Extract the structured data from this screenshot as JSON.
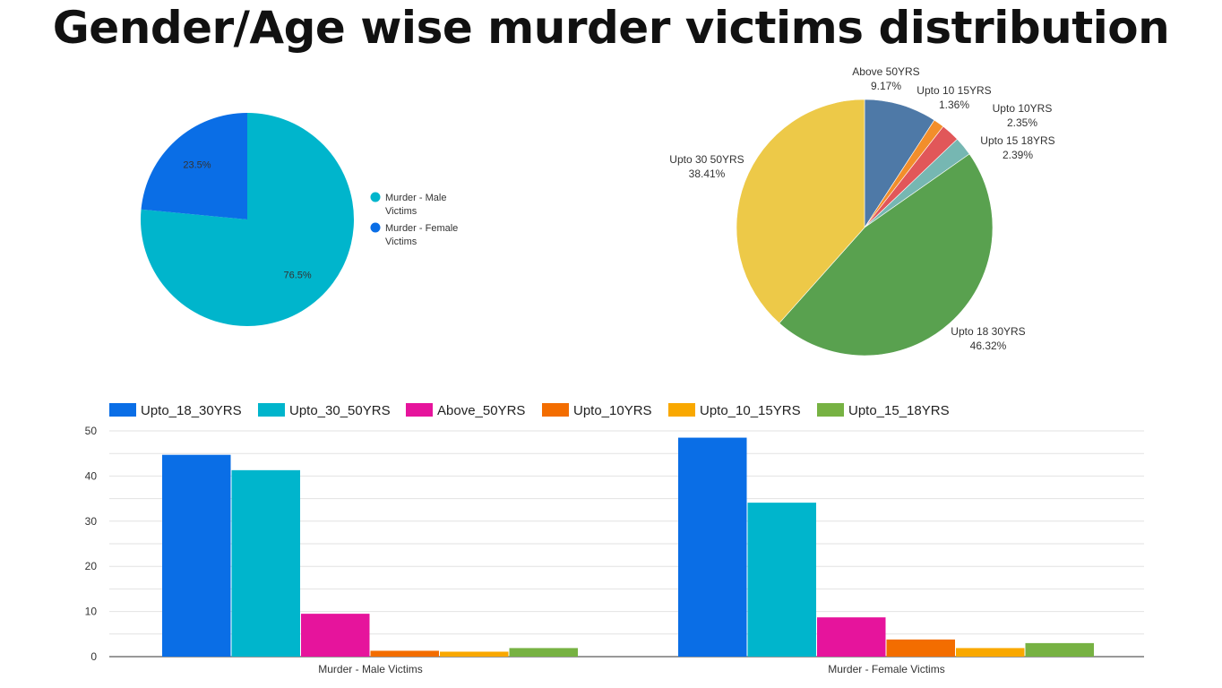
{
  "title": "Gender/Age wise murder victims distribution",
  "chart_data": [
    {
      "type": "pie",
      "title": "",
      "legend_position": "right",
      "slices": [
        {
          "name": "Murder - Male Victims",
          "name_lines": [
            "Murder - Male",
            "Victims"
          ],
          "value": 76.5,
          "label": "76.5%",
          "color": "#00b5cc"
        },
        {
          "name": "Murder - Female Victims",
          "name_lines": [
            "Murder - Female",
            "Victims"
          ],
          "value": 23.5,
          "label": "23.5%",
          "color": "#0a6ee6"
        }
      ]
    },
    {
      "type": "pie",
      "title": "",
      "legend_position": "none",
      "slices": [
        {
          "name": "Above 50YRS",
          "value": 9.17,
          "label": "9.17%",
          "color": "#4e79a7"
        },
        {
          "name": "Upto 10 15YRS",
          "value": 1.36,
          "label": "1.36%",
          "color": "#f28e2b"
        },
        {
          "name": "Upto 10YRS",
          "value": 2.35,
          "label": "2.35%",
          "color": "#e15759"
        },
        {
          "name": "Upto 15 18YRS",
          "value": 2.39,
          "label": "2.39%",
          "color": "#76b7b2"
        },
        {
          "name": "Upto 18 30YRS",
          "value": 46.32,
          "label": "46.32%",
          "color": "#59a14f"
        },
        {
          "name": "Upto 30 50YRS",
          "value": 38.41,
          "label": "38.41%",
          "color": "#edc948"
        }
      ]
    },
    {
      "type": "bar",
      "title": "",
      "xlabel": "",
      "ylabel": "",
      "ylim": [
        0,
        50
      ],
      "yticks": [
        0,
        10,
        20,
        30,
        40,
        50
      ],
      "grid": true,
      "legend_position": "top",
      "categories": [
        "Murder - Male Victims",
        "Murder - Female Victims"
      ],
      "series": [
        {
          "name": "Upto_18_30YRS",
          "values": [
            44.7,
            48.5
          ],
          "color": "#0a6ee6"
        },
        {
          "name": "Upto_30_50YRS",
          "values": [
            41.3,
            34.1
          ],
          "color": "#00b5cc"
        },
        {
          "name": "Above_50YRS",
          "values": [
            9.5,
            8.7
          ],
          "color": "#e6149c"
        },
        {
          "name": "Upto_10YRS",
          "values": [
            1.3,
            3.8
          ],
          "color": "#f36d00"
        },
        {
          "name": "Upto_10_15YRS",
          "values": [
            1.1,
            1.9
          ],
          "color": "#f9a800"
        },
        {
          "name": "Upto_15_18YRS",
          "values": [
            1.9,
            3.0
          ],
          "color": "#77b243"
        }
      ]
    }
  ]
}
